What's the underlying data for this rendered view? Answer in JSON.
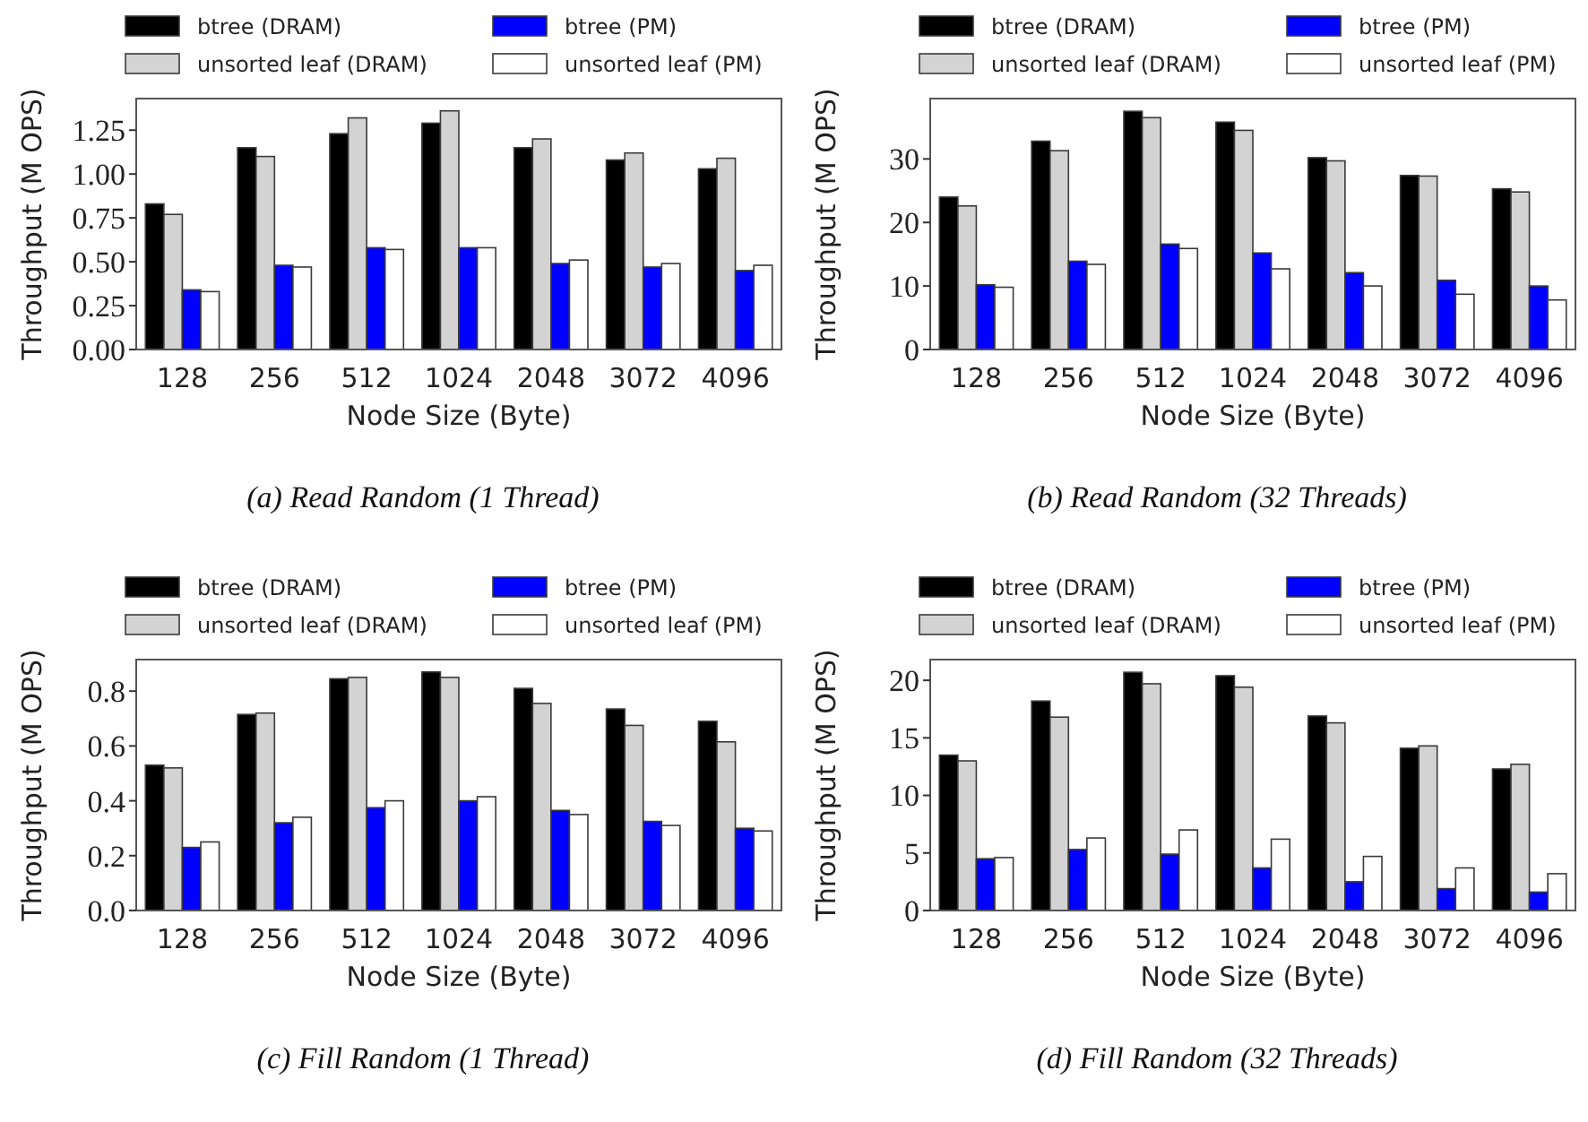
{
  "chart_data": [
    {
      "type": "bar",
      "title": "(a) Read Random (1 Thread)",
      "xlabel": "Node Size (Byte)",
      "ylabel": "Throughput (M OPS)",
      "categories": [
        "128",
        "256",
        "512",
        "1024",
        "2048",
        "3072",
        "4096"
      ],
      "ylim": [
        0,
        1.43
      ],
      "yticks": [
        {
          "value": 0,
          "label": "0.00"
        },
        {
          "value": 0.25,
          "label": "0.25"
        },
        {
          "value": 0.5,
          "label": "0.50"
        },
        {
          "value": 0.75,
          "label": "0.75"
        },
        {
          "value": 1,
          "label": "1.00"
        },
        {
          "value": 1.25,
          "label": "1.25"
        }
      ],
      "grid": false,
      "legend": "top",
      "series": [
        {
          "name": "btree (DRAM)",
          "color": "#000000",
          "values": [
            0.83,
            1.15,
            1.23,
            1.29,
            1.15,
            1.08,
            1.03
          ]
        },
        {
          "name": "unsorted leaf (DRAM)",
          "color": "#d3d3d3",
          "values": [
            0.77,
            1.1,
            1.32,
            1.36,
            1.2,
            1.12,
            1.09
          ]
        },
        {
          "name": "btree (PM)",
          "color": "#0000ff",
          "values": [
            0.34,
            0.48,
            0.58,
            0.58,
            0.49,
            0.47,
            0.45
          ]
        },
        {
          "name": "unsorted leaf (PM)",
          "color": "#ffffff",
          "values": [
            0.33,
            0.47,
            0.57,
            0.58,
            0.51,
            0.49,
            0.48
          ]
        }
      ]
    },
    {
      "type": "bar",
      "title": "(b) Read Random (32 Threads)",
      "xlabel": "Node Size (Byte)",
      "ylabel": "Throughput (M OPS)",
      "categories": [
        "128",
        "256",
        "512",
        "1024",
        "2048",
        "3072",
        "4096"
      ],
      "ylim": [
        0,
        39.5
      ],
      "yticks": [
        0,
        10,
        20,
        30
      ],
      "grid": false,
      "legend": "top",
      "series": [
        {
          "name": "btree (DRAM)",
          "color": "#000000",
          "values": [
            24,
            32.8,
            37.5,
            35.8,
            30.2,
            27.4,
            25.3
          ]
        },
        {
          "name": "unsorted leaf (DRAM)",
          "color": "#d3d3d3",
          "values": [
            22.6,
            31.3,
            36.5,
            34.5,
            29.7,
            27.3,
            24.8
          ]
        },
        {
          "name": "btree (PM)",
          "color": "#0000ff",
          "values": [
            10.2,
            13.9,
            16.6,
            15.2,
            12.1,
            10.9,
            10.0
          ]
        },
        {
          "name": "unsorted leaf (PM)",
          "color": "#ffffff",
          "values": [
            9.8,
            13.4,
            15.9,
            12.7,
            10.0,
            8.7,
            7.8
          ]
        }
      ]
    },
    {
      "type": "bar",
      "title": "(c) Fill Random (1 Thread)",
      "xlabel": "Node Size (Byte)",
      "ylabel": "Throughput (M OPS)",
      "categories": [
        "128",
        "256",
        "512",
        "1024",
        "2048",
        "3072",
        "4096"
      ],
      "ylim": [
        0,
        0.915
      ],
      "yticks": [
        {
          "value": 0,
          "label": "0.0"
        },
        {
          "value": 0.2,
          "label": "0.2"
        },
        {
          "value": 0.4,
          "label": "0.4"
        },
        {
          "value": 0.6,
          "label": "0.6"
        },
        {
          "value": 0.8,
          "label": "0.8"
        }
      ],
      "grid": false,
      "legend": "top",
      "series": [
        {
          "name": "btree (DRAM)",
          "color": "#000000",
          "values": [
            0.53,
            0.715,
            0.845,
            0.87,
            0.81,
            0.735,
            0.69
          ]
        },
        {
          "name": "unsorted leaf (DRAM)",
          "color": "#d3d3d3",
          "values": [
            0.52,
            0.72,
            0.85,
            0.85,
            0.755,
            0.675,
            0.615
          ]
        },
        {
          "name": "btree (PM)",
          "color": "#0000ff",
          "values": [
            0.23,
            0.32,
            0.375,
            0.4,
            0.365,
            0.325,
            0.3
          ]
        },
        {
          "name": "unsorted leaf (PM)",
          "color": "#ffffff",
          "values": [
            0.25,
            0.34,
            0.4,
            0.415,
            0.35,
            0.31,
            0.29
          ]
        }
      ]
    },
    {
      "type": "bar",
      "title": "(d) Fill Random (32 Threads)",
      "xlabel": "Node Size (Byte)",
      "ylabel": "Throughput (M OPS)",
      "categories": [
        "128",
        "256",
        "512",
        "1024",
        "2048",
        "3072",
        "4096"
      ],
      "ylim": [
        0,
        21.8
      ],
      "yticks": [
        0,
        5,
        10,
        15,
        20
      ],
      "grid": false,
      "legend": "top",
      "series": [
        {
          "name": "btree (DRAM)",
          "color": "#000000",
          "values": [
            13.5,
            18.2,
            20.7,
            20.4,
            16.9,
            14.1,
            12.3
          ]
        },
        {
          "name": "unsorted leaf (DRAM)",
          "color": "#d3d3d3",
          "values": [
            13.0,
            16.8,
            19.7,
            19.4,
            16.3,
            14.3,
            12.7
          ]
        },
        {
          "name": "btree (PM)",
          "color": "#0000ff",
          "values": [
            4.5,
            5.3,
            4.9,
            3.7,
            2.5,
            1.9,
            1.6
          ]
        },
        {
          "name": "unsorted leaf (PM)",
          "color": "#ffffff",
          "values": [
            4.6,
            6.3,
            7.0,
            6.2,
            4.7,
            3.7,
            3.2
          ]
        }
      ]
    }
  ]
}
